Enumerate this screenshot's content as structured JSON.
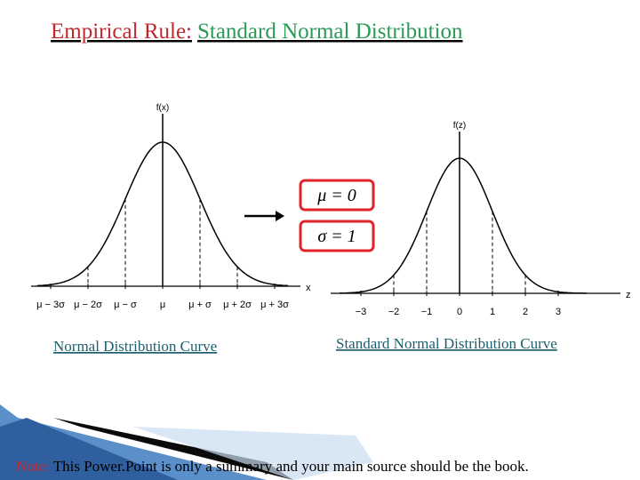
{
  "title": {
    "part1": "Empirical Rule:",
    "part2": "Standard Normal Distribution"
  },
  "left_plot": {
    "y_label": "f(x)",
    "x_label": "x",
    "ticks": [
      "μ − 3σ",
      "μ − 2σ",
      "μ − σ",
      "μ",
      "μ + σ",
      "μ + 2σ",
      "μ + 3σ"
    ],
    "caption": "Normal Distribution Curve"
  },
  "transform": {
    "mean": "μ = 0",
    "sd": "σ = 1"
  },
  "right_plot": {
    "y_label": "f(z)",
    "x_label": "z",
    "ticks": [
      "−3",
      "−2",
      "−1",
      "0",
      "1",
      "2",
      "3"
    ],
    "caption": "Standard Normal Distribution Curve"
  },
  "note": {
    "label": "Note:",
    "text": " This Power.Point is only a summary and your main source should be the book."
  }
}
